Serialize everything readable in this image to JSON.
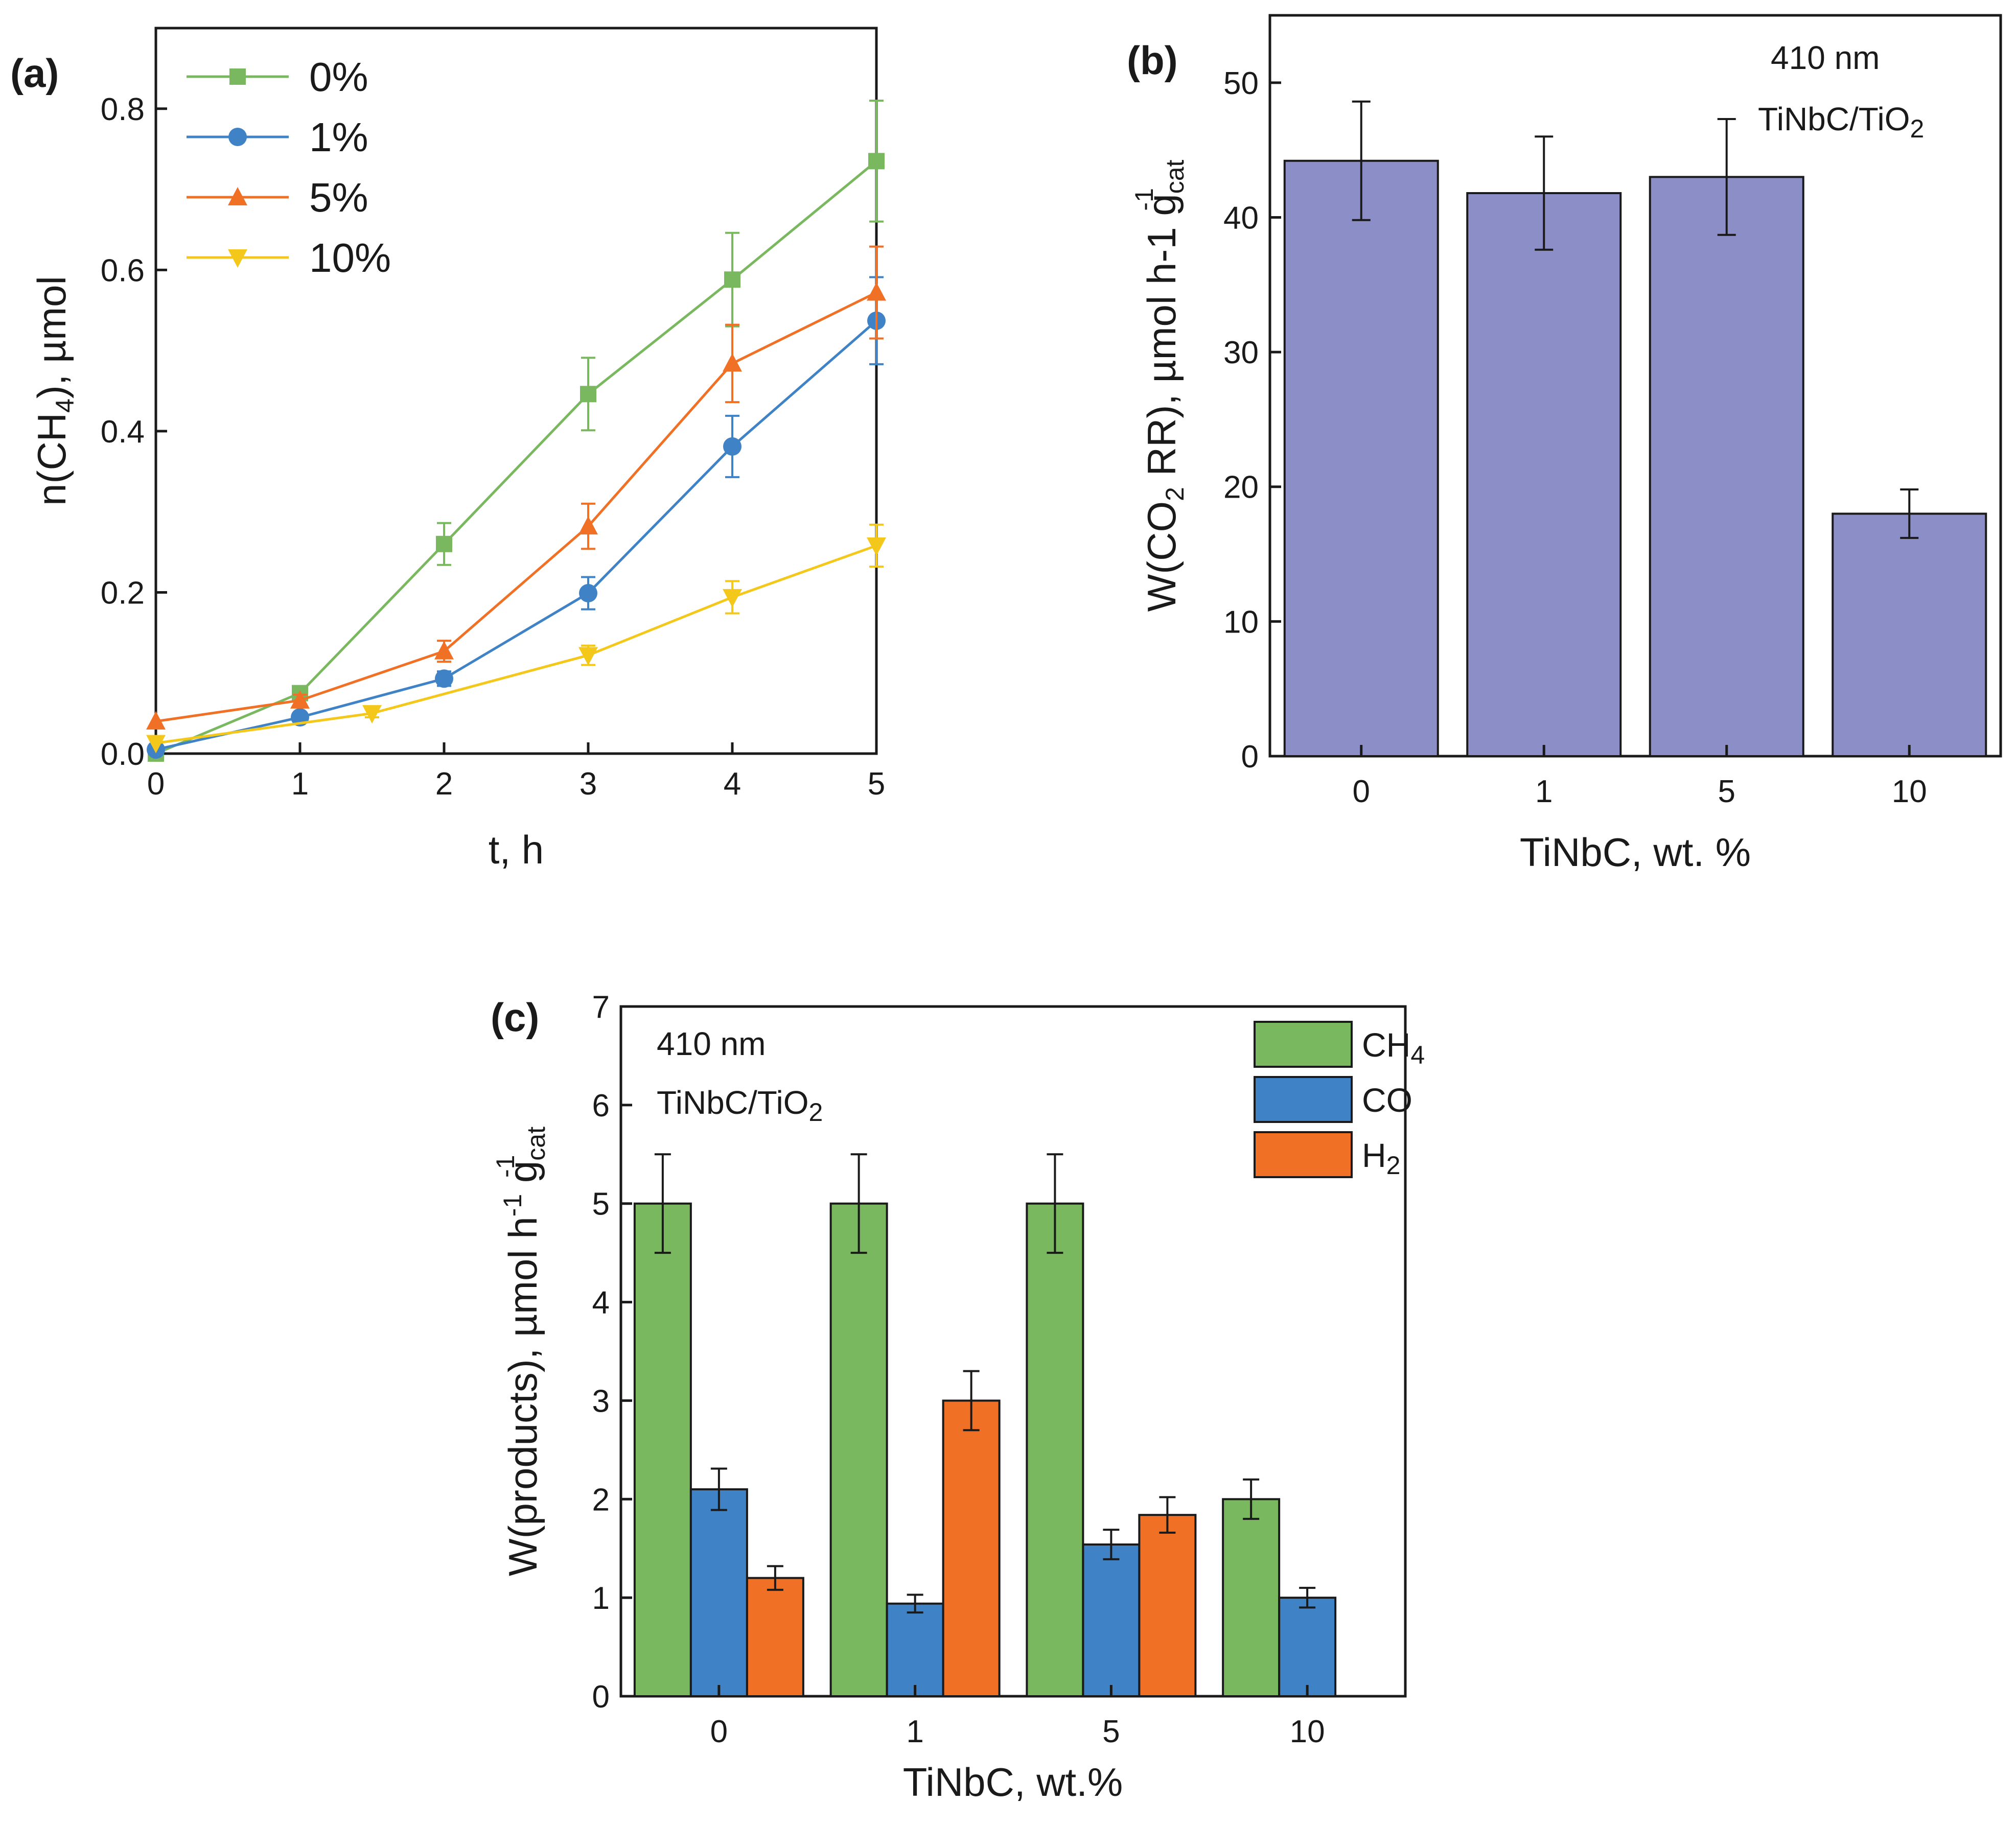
{
  "colors": {
    "green": "#7ab860",
    "blue": "#3f83c6",
    "orange": "#f07125",
    "yellow": "#f4c81b",
    "purple": "#8c8fc7",
    "axis": "#1a1a1a"
  },
  "chart_data": [
    {
      "id": "a",
      "panel_label": "(a)",
      "type": "line",
      "xlabel": "t, h",
      "ylabel": {
        "pre": "n(CH",
        "sub": "4",
        "post": "), µmol"
      },
      "xlim": [
        0,
        5
      ],
      "ylim": [
        0,
        0.9
      ],
      "xticks": [
        "0",
        "1",
        "2",
        "3",
        "4",
        "5"
      ],
      "yticks": [
        "0.0",
        "0.2",
        "0.4",
        "0.6",
        "0.8"
      ],
      "series": [
        {
          "name": "0%",
          "color": "green",
          "marker": "square",
          "x": [
            0,
            1,
            2,
            3,
            4,
            5
          ],
          "y": [
            0.0,
            0.075,
            0.26,
            0.446,
            0.588,
            0.735
          ],
          "err": [
            0.0,
            0.008,
            0.026,
            0.045,
            0.058,
            0.075
          ]
        },
        {
          "name": "1%",
          "color": "blue",
          "marker": "circle",
          "x": [
            0,
            1,
            2,
            3,
            4,
            5
          ],
          "y": [
            0.005,
            0.045,
            0.093,
            0.199,
            0.381,
            0.537
          ],
          "err": [
            0.0,
            0.005,
            0.009,
            0.02,
            0.038,
            0.054
          ]
        },
        {
          "name": "5%",
          "color": "orange",
          "marker": "triangle-up",
          "x": [
            0,
            1,
            2,
            3,
            4,
            5
          ],
          "y": [
            0.04,
            0.066,
            0.127,
            0.282,
            0.484,
            0.572
          ],
          "err": [
            0.0,
            0.007,
            0.013,
            0.028,
            0.048,
            0.057
          ]
        },
        {
          "name": "10%",
          "color": "yellow",
          "marker": "triangle-down",
          "x": [
            0,
            1.5,
            3,
            4,
            5
          ],
          "y": [
            0.013,
            0.05,
            0.122,
            0.194,
            0.258
          ],
          "err": [
            0.0,
            0.005,
            0.012,
            0.02,
            0.026
          ]
        }
      ]
    },
    {
      "id": "b",
      "panel_label": "(b)",
      "type": "bar",
      "xlabel": "TiNbC, wt. %",
      "ylabel": {
        "pre": "W(CO",
        "sub": "2",
        "mid": " RR), µmol h-1 g",
        "subcat": "cat",
        "sup": "-1"
      },
      "annotation": {
        "line1": "410 nm",
        "line2_pre": "TiNbC/TiO",
        "line2_sub": "2"
      },
      "categories": [
        "0",
        "1",
        "5",
        "10"
      ],
      "values": [
        44.2,
        41.8,
        43.0,
        18.0
      ],
      "err": [
        4.4,
        4.2,
        4.3,
        1.8
      ],
      "ylim": [
        0,
        55
      ],
      "yticks": [
        "0",
        "10",
        "20",
        "30",
        "40",
        "50"
      ],
      "color": "purple"
    },
    {
      "id": "c",
      "panel_label": "(c)",
      "type": "bar",
      "xlabel": "TiNbC, wt.%",
      "ylabel": {
        "pre": "W(products), µmol h",
        "sup1": "-1",
        "mid": " g",
        "subcat": "cat",
        "sup2": "-1"
      },
      "annotation": {
        "line1": "410 nm",
        "line2_pre": "TiNbC/TiO",
        "line2_sub": "2"
      },
      "categories": [
        "0",
        "1",
        "5",
        "10"
      ],
      "ylim": [
        0,
        7
      ],
      "yticks": [
        "0",
        "1",
        "2",
        "3",
        "4",
        "5",
        "6",
        "7"
      ],
      "legend_position": "top-right",
      "series": [
        {
          "name": "CH",
          "name_sub": "4",
          "color": "green",
          "values": [
            5.0,
            5.0,
            5.0,
            2.0
          ],
          "err": [
            0.5,
            0.5,
            0.5,
            0.2
          ]
        },
        {
          "name": "CO",
          "name_sub": "",
          "color": "blue",
          "values": [
            2.1,
            0.94,
            1.54,
            1.0
          ],
          "err": [
            0.21,
            0.09,
            0.15,
            0.1
          ]
        },
        {
          "name": "H",
          "name_sub": "2",
          "color": "orange",
          "values": [
            1.2,
            3.0,
            1.84,
            null
          ],
          "err": [
            0.12,
            0.3,
            0.18,
            null
          ]
        }
      ]
    }
  ]
}
